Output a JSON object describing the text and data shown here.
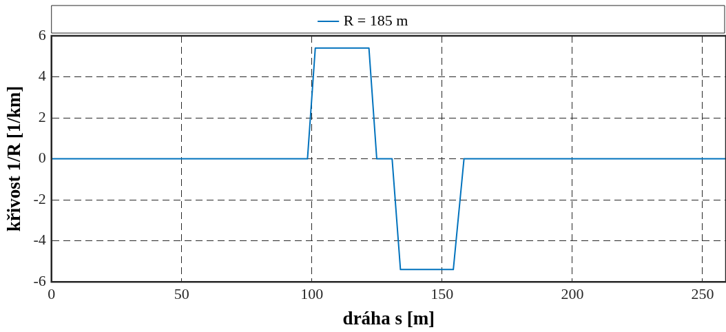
{
  "chart_data": {
    "type": "line",
    "xlabel": "dráha s [m]",
    "ylabel": "křivost 1/R [1/km]",
    "x": [
      0,
      98.3,
      101.3,
      121.9,
      124.9,
      130.8,
      134,
      154.3,
      158.4,
      259
    ],
    "series": [
      {
        "name": "R = 185 m",
        "color": "#0072bd",
        "values": [
          0,
          0,
          5.4,
          5.4,
          0,
          0,
          -5.4,
          -5.4,
          0,
          0
        ]
      }
    ],
    "xlim": [
      0,
      259
    ],
    "xticks": [
      0,
      50,
      100,
      150,
      200,
      250
    ],
    "ylim": [
      -6,
      6
    ],
    "yticks": [
      -6,
      -4,
      -2,
      0,
      2,
      4,
      6
    ],
    "grid": true,
    "legend": "top",
    "marker": "none",
    "line_style": "solid"
  }
}
